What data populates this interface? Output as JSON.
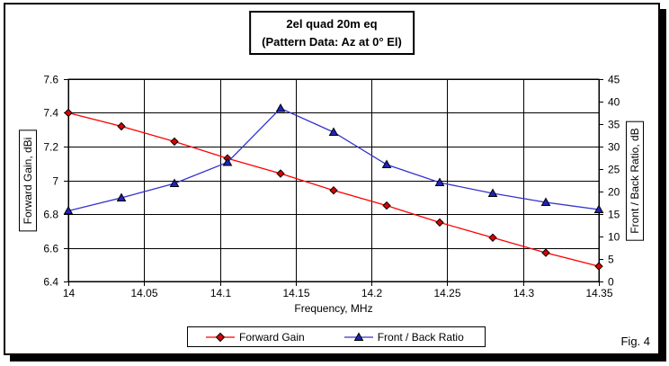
{
  "fig_label": "Fig. 4",
  "chart_data": {
    "type": "line",
    "title": "2el quad 20m eq",
    "subtitle": "(Pattern Data: Az at 0° El)",
    "xlabel": "Frequency, MHz",
    "x_range": [
      14.0,
      14.35
    ],
    "x_ticks": [
      "14",
      "14.05",
      "14.1",
      "14.15",
      "14.2",
      "14.25",
      "14.3",
      "14.35"
    ],
    "grid": true,
    "legend_position": "bottom",
    "left_axis": {
      "label": "Forward Gain, dBi",
      "min": 6.4,
      "max": 7.6,
      "step": 0.2,
      "ticks": [
        "7.6",
        "7.4",
        "7.2",
        "7",
        "6.8",
        "6.6",
        "6.4"
      ],
      "color": "#ff0000"
    },
    "right_axis": {
      "label": "Front / Back Ratio, dB",
      "min": 0,
      "max": 45,
      "step": 5,
      "ticks": [
        "45",
        "40",
        "35",
        "30",
        "25",
        "20",
        "15",
        "10",
        "5",
        "0"
      ],
      "color": "#0000cc"
    },
    "x": [
      14.0,
      14.035,
      14.07,
      14.105,
      14.14,
      14.175,
      14.21,
      14.245,
      14.28,
      14.315,
      14.35
    ],
    "series": [
      {
        "name": "Forward Gain",
        "axis": "left",
        "marker": "diamond",
        "line_color": "#ff0000",
        "marker_color": "#dd0000",
        "values": [
          7.4,
          7.32,
          7.23,
          7.13,
          7.04,
          6.94,
          6.85,
          6.75,
          6.66,
          6.57,
          6.49
        ]
      },
      {
        "name": "Front / Back Ratio",
        "axis": "right",
        "marker": "triangle",
        "line_color": "#3333cc",
        "marker_color": "#2222bb",
        "values": [
          15.7,
          18.6,
          21.8,
          26.5,
          38.5,
          33.2,
          26.0,
          22.0,
          19.6,
          17.6,
          16.0
        ]
      }
    ]
  }
}
